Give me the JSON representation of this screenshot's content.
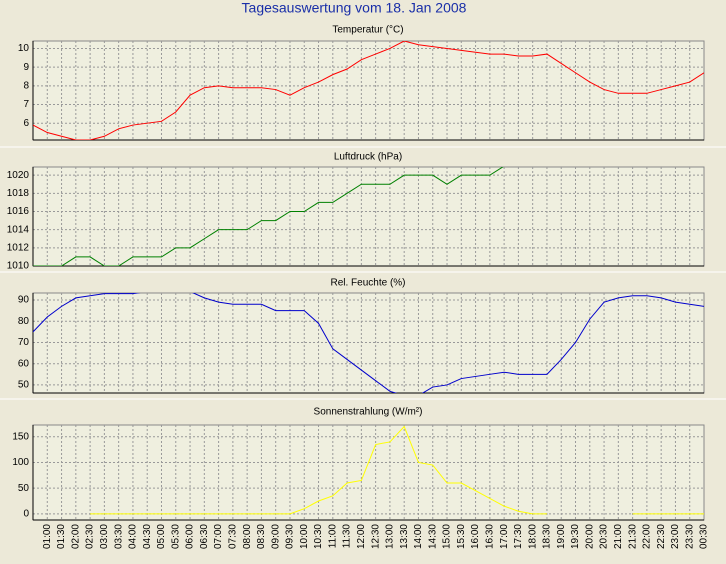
{
  "title": "Tagesauswertung vom 18. Jan 2008",
  "chart_data": [
    {
      "type": "line",
      "title": "Temperatur (°C)",
      "color": "#ff0000",
      "values": [
        5.9,
        5.5,
        5.3,
        5.1,
        5.1,
        5.3,
        5.7,
        5.9,
        6.0,
        6.1,
        6.6,
        7.5,
        7.9,
        8.0,
        7.9,
        7.9,
        7.9,
        7.8,
        7.5,
        7.9,
        8.2,
        8.6,
        8.9,
        9.4,
        9.7,
        10.0,
        10.4,
        10.2,
        10.1,
        10.0,
        9.9,
        9.8,
        9.7,
        9.7,
        9.6,
        9.6,
        9.7,
        9.2,
        8.7,
        8.2,
        7.8,
        7.6,
        7.6,
        7.6,
        7.8,
        8.0,
        8.2,
        8.7
      ],
      "ylim": [
        5.1,
        10.4
      ],
      "yticks": [
        6,
        7,
        8,
        9,
        10
      ],
      "grid": true
    },
    {
      "type": "line",
      "title": "Luftdruck (hPa)",
      "color": "#008000",
      "values": [
        1010,
        1010,
        1010,
        1011,
        1011,
        1010,
        1010,
        1011,
        1011,
        1011,
        1012,
        1012,
        1013,
        1014,
        1014,
        1014,
        1015,
        1015,
        1016,
        1016,
        1017,
        1017,
        1018,
        1019,
        1019,
        1019,
        1020,
        1020,
        1020,
        1019,
        1020,
        1020,
        1020,
        1021,
        null,
        null,
        null,
        null,
        null,
        null,
        null,
        null,
        null,
        null,
        null,
        null,
        null,
        null
      ],
      "ylim": [
        1010,
        1020.9
      ],
      "yticks": [
        1010,
        1012,
        1014,
        1016,
        1018,
        1020
      ],
      "grid": true
    },
    {
      "type": "line",
      "title": "Rel. Feuchte (%)",
      "color": "#0000cc",
      "values": [
        75,
        82,
        87,
        91,
        92,
        93,
        93,
        93,
        94,
        94,
        94,
        94,
        91,
        89,
        88,
        88,
        88,
        85,
        85,
        85,
        79,
        67,
        62,
        57,
        52,
        47,
        45,
        45,
        49,
        50,
        53,
        54,
        55,
        56,
        55,
        55,
        55,
        62,
        70,
        81,
        89,
        91,
        92,
        92,
        91,
        89,
        88,
        87
      ],
      "ylim": [
        46.2,
        93.3
      ],
      "yticks": [
        50,
        60,
        70,
        80,
        90
      ],
      "grid": true
    },
    {
      "type": "line",
      "title": "Sonnenstrahlung (W/m²)",
      "color": "#ffff00",
      "values": [
        null,
        null,
        null,
        null,
        0,
        0,
        0,
        0,
        0,
        0,
        0,
        0,
        0,
        0,
        0,
        0,
        0,
        0,
        0,
        10,
        25,
        35,
        60,
        65,
        135,
        140,
        170,
        100,
        95,
        60,
        60,
        45,
        30,
        15,
        5,
        0,
        0,
        null,
        null,
        null,
        null,
        null,
        0,
        0,
        0,
        0,
        0,
        0
      ],
      "ylim": [
        -12,
        173
      ],
      "yticks": [
        0,
        50,
        100,
        150
      ],
      "grid": true,
      "categories": [
        null,
        "01:00",
        "01:30",
        "02:00",
        "02:30",
        "03:00",
        "03:30",
        "04:00",
        "04:30",
        "05:00",
        "05:30",
        "06:00",
        "06:30",
        "07:00",
        "07:30",
        "08:00",
        "08:30",
        "09:00",
        "09:30",
        "10:00",
        "10:30",
        "11:00",
        "11:30",
        "12:00",
        "12:30",
        "13:00",
        "13:30",
        "14:00",
        "14:30",
        "15:00",
        "15:30",
        "16:00",
        "16:30",
        "17:00",
        "17:30",
        "18:00",
        "18:30",
        "19:00",
        "19:30",
        "20:00",
        "20:30",
        "21:00",
        "21:30",
        "22:00",
        "22:30",
        "23:00",
        "23:30",
        "00:30"
      ]
    }
  ]
}
